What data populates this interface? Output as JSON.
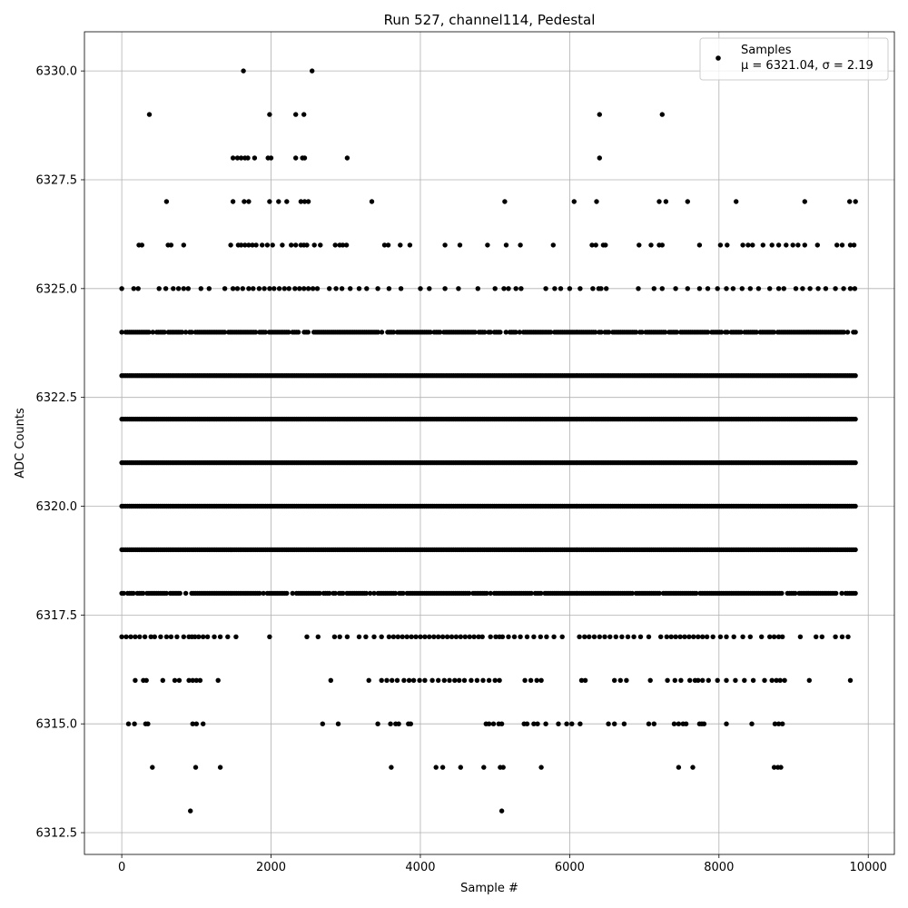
{
  "chart_data": {
    "type": "scatter",
    "title": "Run 527, channel114, Pedestal",
    "xlabel": "Sample #",
    "ylabel": "ADC Counts",
    "xlim": [
      -500,
      10350
    ],
    "ylim": [
      6312.0,
      6330.9
    ],
    "xticks": [
      0,
      2000,
      4000,
      6000,
      8000,
      10000
    ],
    "xtick_labels": [
      "0",
      "2000",
      "4000",
      "6000",
      "8000",
      "10000"
    ],
    "yticks": [
      6312.5,
      6315.0,
      6317.5,
      6320.0,
      6322.5,
      6325.0,
      6327.5,
      6330.0
    ],
    "ytick_labels": [
      "6312.5",
      "6315.0",
      "6317.5",
      "6320.0",
      "6322.5",
      "6325.0",
      "6327.5",
      "6330.0"
    ],
    "grid": true,
    "legend_position": "top-right",
    "marker_color": "#000000",
    "series": [
      {
        "name": "Samples",
        "stats_label": "μ = 6321.04, σ = 2.19",
        "x_range": [
          0,
          9830
        ],
        "levels": [
          {
            "y": 6330,
            "x": [
              1630,
              2550
            ]
          },
          {
            "y": 6329,
            "x": [
              370,
              1980,
              2330,
              2440,
              6400,
              7240
            ]
          },
          {
            "y": 6328,
            "x": [
              1490,
              1550,
              1600,
              1650,
              1690,
              1780,
              1960,
              2000,
              2330,
              2420,
              2450,
              3020,
              6400
            ]
          },
          {
            "y": 6327,
            "x": [
              600,
              1490,
              1640,
              1700,
              1980,
              2100,
              2210,
              2400,
              2450,
              2500,
              3350,
              5130,
              6060,
              6360,
              7200,
              7290,
              7580,
              8230,
              9150,
              9750,
              9830
            ]
          },
          {
            "y": 6326,
            "x": [
              230,
              270,
              620,
              660,
              830,
              1460,
              1560,
              1600,
              1650,
              1700,
              1750,
              1800,
              1880,
              1950,
              2020,
              2150,
              2270,
              2330,
              2400,
              2440,
              2480,
              2580,
              2660,
              2860,
              2920,
              2960,
              3010,
              3520,
              3570,
              3730,
              3860,
              4330,
              4530,
              4900,
              5150,
              5340,
              5780,
              6300,
              6350,
              6450,
              6480,
              6930,
              7090,
              7200,
              7240,
              7740,
              8020,
              8110,
              8320,
              8390,
              8450,
              8590,
              8710,
              8800,
              8900,
              8990,
              9060,
              9150,
              9320,
              9580,
              9650,
              9760,
              9810
            ]
          },
          {
            "y": 6325,
            "x": [
              0,
              160,
              220,
              500,
              590,
              690,
              760,
              830,
              890,
              1060,
              1170,
              1380,
              1490,
              1550,
              1620,
              1700,
              1760,
              1840,
              1910,
              1980,
              2040,
              2110,
              2180,
              2240,
              2320,
              2380,
              2440,
              2500,
              2560,
              2620,
              2780,
              2870,
              2950,
              3060,
              3180,
              3280,
              3430,
              3580,
              3740,
              4000,
              4120,
              4330,
              4510,
              4770,
              5000,
              5120,
              5180,
              5280,
              5350,
              5680,
              5800,
              5880,
              6000,
              6140,
              6310,
              6390,
              6420,
              6490,
              6920,
              7130,
              7240,
              7420,
              7580,
              7740,
              7850,
              7980,
              8100,
              8190,
              8310,
              8420,
              8530,
              8680,
              8800,
              8870,
              9030,
              9120,
              9220,
              9330,
              9430,
              9560,
              9670,
              9760,
              9820
            ]
          },
          {
            "y": 6324,
            "x": "dense"
          },
          {
            "y": 6323,
            "x": "dense"
          },
          {
            "y": 6322,
            "x": "dense"
          },
          {
            "y": 6321,
            "x": "dense"
          },
          {
            "y": 6320,
            "x": "dense"
          },
          {
            "y": 6319,
            "x": "dense"
          },
          {
            "y": 6318,
            "x": "dense"
          },
          {
            "y": 6317,
            "x": [
              0,
              60,
              120,
              180,
              240,
              310,
              390,
              440,
              520,
              600,
              660,
              740,
              830,
              900,
              940,
              980,
              1030,
              1090,
              1150,
              1240,
              1320,
              1420,
              1530,
              1980,
              2480,
              2630,
              2850,
              2920,
              3020,
              3180,
              3270,
              3380,
              3480,
              3580,
              3640,
              3700,
              3760,
              3820,
              3880,
              3940,
              4000,
              4060,
              4120,
              4180,
              4240,
              4300,
              4360,
              4420,
              4480,
              4540,
              4600,
              4660,
              4720,
              4780,
              4830,
              4940,
              5010,
              5060,
              5100,
              5180,
              5260,
              5340,
              5430,
              5520,
              5610,
              5690,
              5790,
              5900,
              6130,
              6200,
              6260,
              6330,
              6400,
              6470,
              6540,
              6620,
              6700,
              6780,
              6860,
              6950,
              7060,
              7220,
              7300,
              7360,
              7420,
              7480,
              7540,
              7600,
              7660,
              7720,
              7780,
              7840,
              7920,
              8020,
              8100,
              8200,
              8320,
              8420,
              8570,
              8680,
              8740,
              8800,
              8850,
              9090,
              9300,
              9380,
              9560,
              9650,
              9730
            ]
          },
          {
            "y": 6316,
            "x": [
              180,
              290,
              330,
              550,
              710,
              770,
              900,
              950,
              1000,
              1050,
              1290,
              2800,
              3310,
              3480,
              3550,
              3620,
              3690,
              3780,
              3850,
              3910,
              3990,
              4060,
              4160,
              4240,
              4320,
              4390,
              4460,
              4520,
              4590,
              4680,
              4760,
              4840,
              4920,
              5000,
              5060,
              5400,
              5480,
              5560,
              5620,
              6160,
              6210,
              6600,
              6680,
              6760,
              7080,
              7310,
              7410,
              7490,
              7610,
              7680,
              7720,
              7780,
              7860,
              7980,
              8100,
              8220,
              8340,
              8460,
              8610,
              8710,
              8770,
              8820,
              8880,
              9210,
              9760
            ]
          },
          {
            "y": 6315,
            "x": [
              90,
              170,
              320,
              350,
              950,
              1000,
              1090,
              2690,
              2900,
              3430,
              3600,
              3670,
              3710,
              3840,
              3870,
              4880,
              4920,
              4980,
              5050,
              5090,
              5390,
              5430,
              5520,
              5570,
              5680,
              5850,
              5960,
              6030,
              6140,
              6520,
              6600,
              6730,
              7060,
              7130,
              7400,
              7460,
              7520,
              7560,
              7740,
              7770,
              7800,
              8100,
              8440,
              8750,
              8800,
              8850
            ]
          },
          {
            "y": 6314,
            "x": [
              410,
              990,
              1320,
              3610,
              4210,
              4300,
              4540,
              4850,
              5070,
              5110,
              5620,
              7460,
              7650,
              8740,
              8790,
              8830
            ]
          },
          {
            "y": 6313,
            "x": [
              920,
              5090
            ]
          }
        ]
      }
    ]
  }
}
